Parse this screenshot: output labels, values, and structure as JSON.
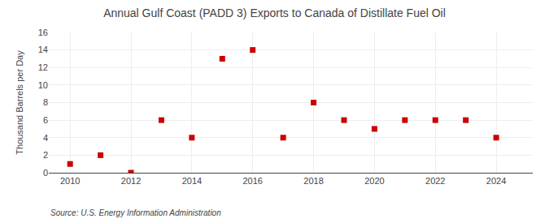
{
  "chart_data": {
    "type": "scatter",
    "title": "Annual Gulf Coast (PADD 3) Exports to Canada of Distillate Fuel Oil",
    "y_label": "Thousand Barrels per Day",
    "annotations": [
      "Source: U.S. Energy Information Administration"
    ],
    "x": [
      2010,
      2011,
      2012,
      2013,
      2014,
      2015,
      2016,
      2017,
      2018,
      2019,
      2020,
      2021,
      2022,
      2023,
      2024
    ],
    "values": [
      1,
      2,
      0,
      6,
      4,
      13,
      14,
      4,
      8,
      6,
      5,
      6,
      6,
      6,
      4
    ],
    "color": "#CC0000",
    "marker": "square",
    "xlim": [
      2009.3,
      2025.2
    ],
    "xticks": [
      2010,
      2012,
      2014,
      2016,
      2018,
      2020,
      2022,
      2024
    ],
    "ylim": [
      0,
      16
    ],
    "yticks": [
      0,
      2,
      4,
      6,
      8,
      10,
      12,
      14,
      16
    ],
    "grid": true
  }
}
